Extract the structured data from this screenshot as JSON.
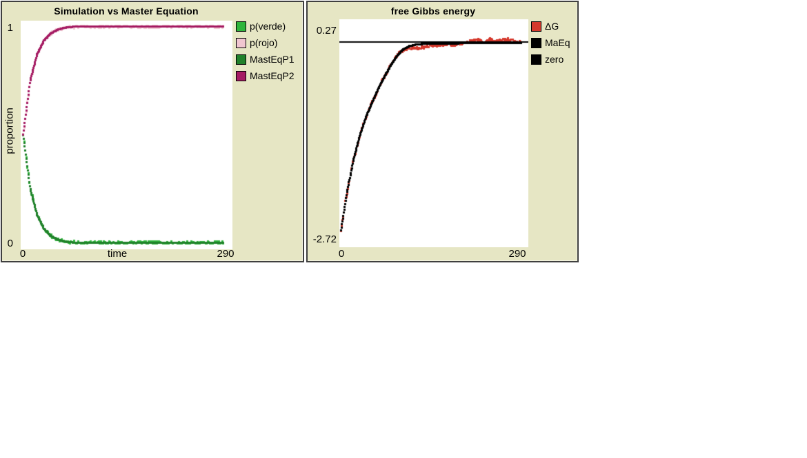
{
  "window": {
    "background": "#ffffff",
    "widget_background": "#e6e6c4",
    "widget_border": "#3f3f3f"
  },
  "chart_data": [
    {
      "type": "scatter",
      "title": "Simulation vs Master Equation",
      "xlabel": "time",
      "ylabel": "proportion",
      "xlim": [
        0,
        290
      ],
      "ylim": [
        0,
        1
      ],
      "x_tick_labels": [
        "0",
        "290"
      ],
      "y_tick_labels": [
        "0",
        "1"
      ],
      "grid": false,
      "legend_position": "right",
      "plot_background": "#ffffff",
      "x_step": 10,
      "legend": [
        {
          "label": "p(verde)",
          "color": "#2fb53c"
        },
        {
          "label": "p(rojo)",
          "color": "#f0c6d0"
        },
        {
          "label": "MastEqP1",
          "color": "#20812a"
        },
        {
          "label": "MastEqP2",
          "color": "#a51b63"
        }
      ],
      "series": [
        {
          "name": "p(verde)",
          "color": "#2fb53c",
          "kind": "sim-dots",
          "base": "MastEqP1",
          "noise": 0.007,
          "values": [
            0.5,
            0.257,
            0.132,
            0.068,
            0.035,
            0.018,
            0.009,
            0.005,
            0.0035,
            0.0035,
            0.0035,
            0.0035,
            0.0035,
            0.0035,
            0.0035,
            0.0035,
            0.0035,
            0.0035,
            0.0035,
            0.0035,
            0.0035,
            0.0035,
            0.0035,
            0.0035,
            0.0035,
            0.0035,
            0.0035,
            0.0035,
            0.0035,
            0.0035
          ]
        },
        {
          "name": "p(rojo)",
          "color": "#f0c6d0",
          "kind": "sim-dots",
          "base": "MastEqP2",
          "noise": 0.007,
          "values": [
            0.5,
            0.743,
            0.868,
            0.932,
            0.965,
            0.982,
            0.991,
            0.995,
            0.9965,
            0.9965,
            0.9965,
            0.9965,
            0.9965,
            0.9965,
            0.9965,
            0.9965,
            0.9965,
            0.9965,
            0.9965,
            0.9965,
            0.9965,
            0.9965,
            0.9965,
            0.9965,
            0.9965,
            0.9965,
            0.9965,
            0.9965,
            0.9965,
            0.9965
          ]
        },
        {
          "name": "MastEqP1",
          "color": "#20812a",
          "kind": "line-dots",
          "values": [
            0.5,
            0.257,
            0.132,
            0.068,
            0.035,
            0.018,
            0.009,
            0.005,
            0.0035,
            0.0035,
            0.0035,
            0.0035,
            0.0035,
            0.0035,
            0.0035,
            0.0035,
            0.0035,
            0.0035,
            0.0035,
            0.0035,
            0.0035,
            0.0035,
            0.0035,
            0.0035,
            0.0035,
            0.0035,
            0.0035,
            0.0035,
            0.0035,
            0.0035
          ]
        },
        {
          "name": "MastEqP2",
          "color": "#a51b63",
          "kind": "line-dots",
          "values": [
            0.5,
            0.743,
            0.868,
            0.932,
            0.965,
            0.982,
            0.991,
            0.995,
            0.9965,
            0.9965,
            0.9965,
            0.9965,
            0.9965,
            0.9965,
            0.9965,
            0.9965,
            0.9965,
            0.9965,
            0.9965,
            0.9965,
            0.9965,
            0.9965,
            0.9965,
            0.9965,
            0.9965,
            0.9965,
            0.9965,
            0.9965,
            0.9965,
            0.9965
          ]
        }
      ]
    },
    {
      "type": "scatter",
      "title": "free Gibbs energy",
      "xlabel": "",
      "ylabel": "",
      "xlim": [
        0,
        290
      ],
      "ylim": [
        -2.72,
        0.27
      ],
      "x_tick_labels": [
        "0",
        "290"
      ],
      "y_tick_labels": [
        "-2.72",
        "0.27"
      ],
      "grid": false,
      "legend_position": "right",
      "plot_background": "#ffffff",
      "x_step": 10,
      "legend": [
        {
          "label": "ΔG",
          "color": "#d5382c"
        },
        {
          "label": "MaEq",
          "color": "#000000"
        },
        {
          "label": "zero",
          "color": "#000000"
        }
      ],
      "series": [
        {
          "name": "ΔG",
          "color": "#d5382c",
          "kind": "sim-dots",
          "base": "MaEq",
          "noise": 0.018,
          "values": [
            -2.5,
            -1.98,
            -1.56,
            -1.25,
            -1.0,
            -0.8,
            -0.62,
            -0.46,
            -0.31,
            -0.185,
            -0.1,
            -0.075,
            -0.08,
            -0.077,
            -0.058,
            -0.041,
            -0.045,
            -0.029,
            -0.039,
            -0.013,
            -0.018,
            0.012,
            0.028,
            0.003,
            0.033,
            0.008,
            0.019,
            0.034,
            0.014,
            0.004
          ]
        },
        {
          "name": "MaEq",
          "color": "#000000",
          "kind": "line-dots",
          "values": [
            -2.5,
            -1.98,
            -1.56,
            -1.25,
            -1.0,
            -0.8,
            -0.62,
            -0.46,
            -0.31,
            -0.185,
            -0.1,
            -0.055,
            -0.035,
            -0.027,
            -0.023,
            -0.021,
            -0.02,
            -0.019,
            -0.019,
            -0.018,
            -0.018,
            -0.018,
            -0.017,
            -0.017,
            -0.017,
            -0.017,
            -0.016,
            -0.016,
            -0.016,
            -0.016
          ]
        },
        {
          "name": "zero",
          "color": "#000000",
          "kind": "hline",
          "value": 0
        }
      ]
    }
  ]
}
